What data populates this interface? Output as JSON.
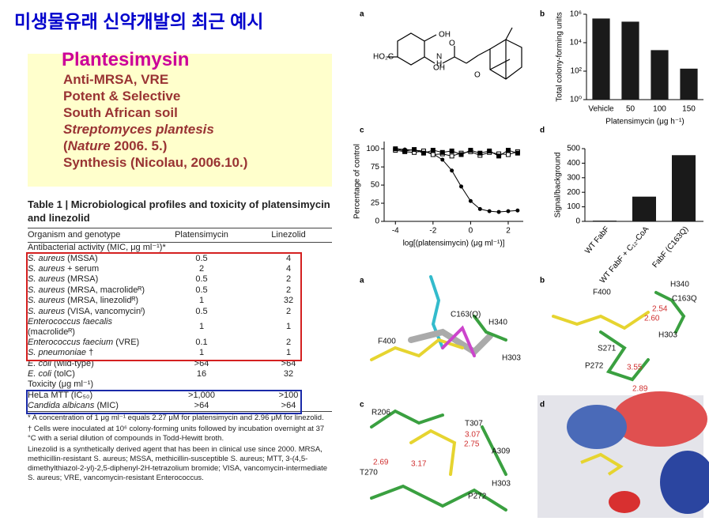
{
  "slide_title": "미생물유래 신약개발의 최근 예시",
  "info_box": {
    "heading": "Plantesimysin",
    "lines": [
      "Anti-MRSA, VRE",
      "Potent & Selective",
      "South African soil"
    ],
    "species": "Streptomyces plantesis",
    "citation": {
      "open": "(",
      "journal": "Nature",
      "rest": " 2006. 5.)"
    },
    "synthesis": "Synthesis (Nicolau, 2006.10.)"
  },
  "table": {
    "title": "Table 1 | Microbiological profiles and toxicity of platensimycin and linezolid",
    "headers": [
      "Organism and genotype",
      "Platensimycin",
      "Linezolid"
    ],
    "sections": [
      {
        "heading": "Antibacterial activity (MIC, μg ml⁻¹)*",
        "rows": [
          {
            "italic": "S. aureus",
            "plain": "(MSSA)",
            "values": [
              "0.5",
              "4"
            ]
          },
          {
            "italic": "S. aureus",
            "plain": "+ serum",
            "values": [
              "2",
              "4"
            ]
          },
          {
            "italic": "S. aureus",
            "plain": "(MRSA)",
            "values": [
              "0.5",
              "2"
            ]
          },
          {
            "italic": "S. aureus",
            "plain": "(MRSA, macrolideᴿ)",
            "values": [
              "0.5",
              "2"
            ]
          },
          {
            "italic": "S. aureus",
            "plain": "(MRSA, linezolidᴿ)",
            "values": [
              "1",
              "32"
            ]
          },
          {
            "italic": "S. aureus",
            "plain": "(VISA, vancomycinᴵ)",
            "values": [
              "0.5",
              "2"
            ]
          },
          {
            "italic": "Enterococcus faecalis",
            "plain": "(macrolideᴿ)",
            "values": [
              "1",
              "1"
            ]
          },
          {
            "italic": "Enterococcus faecium",
            "plain": "(VRE)",
            "values": [
              "0.1",
              "2"
            ]
          },
          {
            "italic": "S. pneumoniae",
            "plain": "†",
            "values": [
              "1",
              "1"
            ]
          },
          {
            "italic": "E. coli",
            "plain": "(wild-type)",
            "values": [
              ">64",
              ">64"
            ]
          },
          {
            "italic": "E. coli",
            "plain": "(tolC)",
            "values": [
              "16",
              "32"
            ]
          }
        ]
      },
      {
        "heading": "Toxicity (μg ml⁻¹)",
        "rows": [
          {
            "plain": "HeLa MTT (IC₅₀)",
            "values": [
              ">1,000",
              ">100"
            ]
          },
          {
            "italic": "Candida albicans",
            "plain": "(MIC)",
            "values": [
              ">64",
              ">64"
            ]
          }
        ]
      }
    ],
    "footnotes": [
      "* A concentration of 1 μg ml⁻¹ equals 2.27 μM for platensimycin and 2.96 μM for linezolid.",
      "† Cells were inoculated at 10⁶ colony-forming units followed by incubation overnight at 37 °C with a serial dilution of compounds in Todd-Hewitt broth.",
      "Linezolid is a synthetically derived agent that has been in clinical use since 2000. MRSA, methicillin-resistant S. aureus; MSSA, methicillin-susceptible S. aureus; MTT, 3-(4,5-dimethylthiazol-2-yl)-2,5-diphenyl-2H-tetrazolium bromide; VISA, vancomycin-intermediate S. aureus; VRE, vancomycin-resistant Enterococcus."
    ]
  },
  "figure": {
    "panel_labels_top": [
      "a",
      "b",
      "c",
      "d"
    ],
    "panel_labels_bottom": [
      "a",
      "b",
      "c",
      "d"
    ],
    "molecule_labels": [
      "OH",
      "HO₂C",
      "OH",
      "N",
      "H",
      "O",
      "O"
    ],
    "structure_labels": [
      [
        "C163(Q)",
        "H340",
        "F400",
        "H303"
      ],
      [
        "F400",
        "H340",
        "C163Q",
        "2.54",
        "2.60",
        "H303",
        "S271",
        "3.55",
        "P272",
        "2.89"
      ],
      [
        "R206",
        "T307",
        "3.07",
        "2.75",
        "A309",
        "2.69",
        "3.17",
        "T270",
        "H303",
        "P272"
      ]
    ]
  },
  "chart_data": [
    {
      "type": "bar",
      "categories": [
        "Vehicle",
        "50",
        "100",
        "150"
      ],
      "values": [
        500000,
        300000,
        3000,
        150
      ],
      "color": "#1a1a1a",
      "log_scale": true,
      "ylim": [
        1,
        1000000
      ],
      "yticks": [
        {
          "value": 1,
          "label": "10⁰"
        },
        {
          "value": 100,
          "label": "10²"
        },
        {
          "value": 10000,
          "label": "10⁴"
        },
        {
          "value": 1000000,
          "label": "10⁶"
        }
      ],
      "x_label": "Platensimycin (μg h⁻¹)",
      "y_label": "Total colony-forming units"
    },
    {
      "type": "line",
      "x": [
        -4,
        -3.5,
        -3,
        -2.5,
        -2,
        -1.5,
        -1,
        -0.5,
        0,
        0.5,
        1,
        1.5,
        2,
        2.5
      ],
      "series": [
        {
          "color": "#000000",
          "values": [
            100,
            99,
            98,
            97,
            93,
            85,
            70,
            48,
            28,
            17,
            14,
            13,
            14,
            15
          ]
        },
        {
          "color": "#000000",
          "values": [
            98,
            96,
            95,
            97,
            92,
            93,
            90,
            94,
            96,
            91,
            95,
            93,
            92,
            96
          ]
        },
        {
          "color": "#000000",
          "values": [
            100,
            97,
            99,
            94,
            98,
            95,
            97,
            92,
            98,
            94,
            97,
            90,
            98,
            94
          ]
        }
      ],
      "xlim": [
        -4.6,
        2.8
      ],
      "ylim": [
        0,
        110
      ],
      "xticks": [
        -4,
        -2,
        0,
        2
      ],
      "yticks": [
        0,
        25,
        50,
        75,
        100
      ],
      "x_label": "log[(platensimycin) (μg ml⁻¹)]",
      "y_label": "Percentage of control"
    },
    {
      "type": "bar",
      "categories": [
        "WT FabF",
        "WT FabF + C₁₂-CoA",
        "FabF (C163Q)"
      ],
      "values": [
        5,
        170,
        455
      ],
      "color": "#1a1a1a",
      "ylim": [
        0,
        500
      ],
      "yticks": [
        0,
        100,
        200,
        300,
        400,
        500
      ],
      "y_label": "Signal/background"
    }
  ]
}
